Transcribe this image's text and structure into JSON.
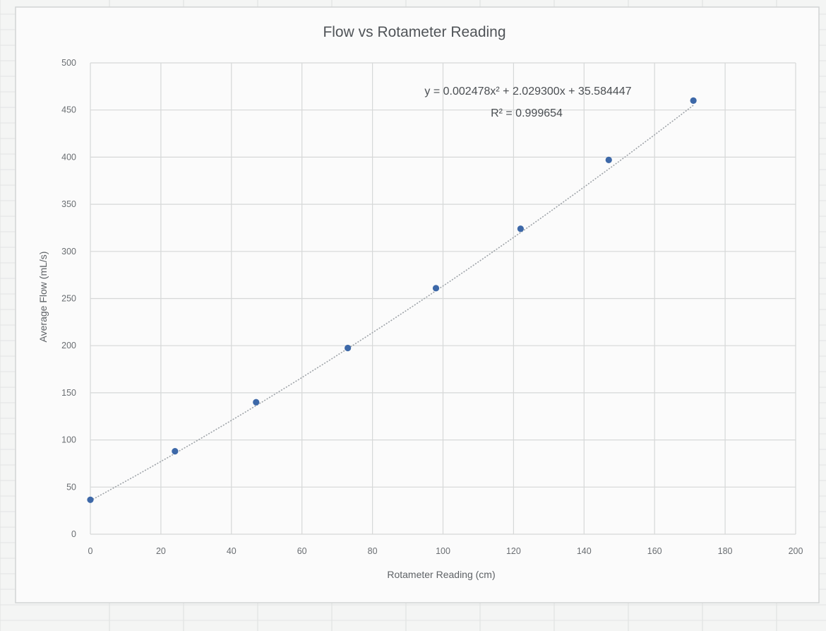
{
  "chart_data": {
    "type": "scatter",
    "title": "Flow vs Rotameter Reading",
    "xlabel": "Rotameter Reading (cm)",
    "ylabel": "Average Flow (mL/s)",
    "xlim": [
      0,
      200
    ],
    "ylim": [
      0,
      500
    ],
    "x_ticks": [
      0,
      20,
      40,
      60,
      80,
      100,
      120,
      140,
      160,
      180,
      200
    ],
    "y_ticks": [
      0,
      50,
      100,
      150,
      200,
      250,
      300,
      350,
      400,
      450,
      500
    ],
    "grid": true,
    "legend": "none",
    "series": [
      {
        "x": [
          0,
          24,
          47,
          73,
          98,
          122,
          147,
          171
        ],
        "y": [
          36.5,
          88,
          140,
          197.5,
          261,
          324,
          397,
          460
        ],
        "color": "#3d68a8"
      }
    ],
    "trendline": {
      "type": "polynomial",
      "coefficients": [
        0.002478,
        2.0293,
        35.584447
      ],
      "equation": "y = 0.002478x² + 2.029300x + 35.584447",
      "r_squared": "R² = 0.999654",
      "color": "#9ea3a8"
    }
  }
}
